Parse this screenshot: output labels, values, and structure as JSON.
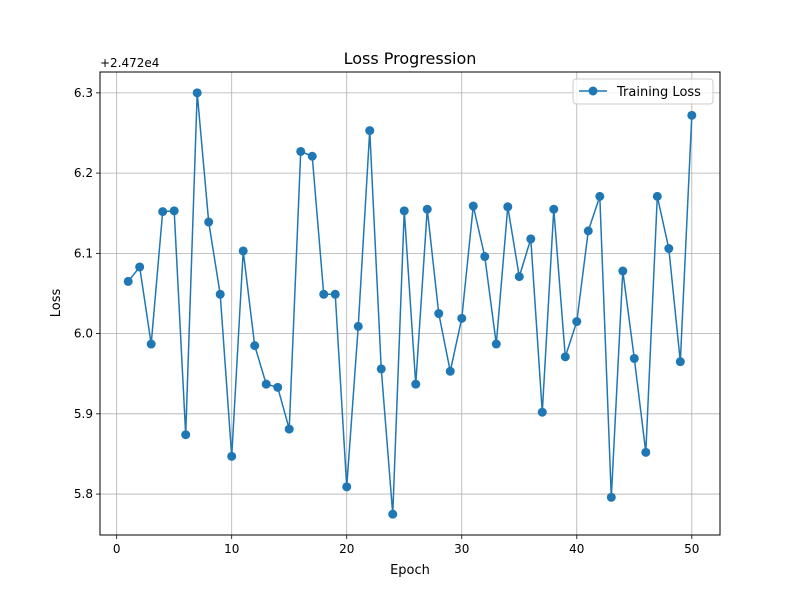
{
  "chart_data": {
    "type": "line",
    "title": "Loss Progression",
    "xlabel": "Epoch",
    "ylabel": "Loss",
    "y_offset_label": "+2.472e4",
    "y_offset": 24720,
    "xlim": [
      -1.45,
      52.45
    ],
    "ylim": [
      5.749,
      6.326
    ],
    "x_ticks": [
      0,
      10,
      20,
      30,
      40,
      50
    ],
    "y_ticks": [
      5.8,
      5.9,
      6.0,
      6.1,
      6.2,
      6.3
    ],
    "y_tick_labels": [
      "5.8",
      "5.9",
      "6.0",
      "6.1",
      "6.2",
      "6.3"
    ],
    "grid": true,
    "legend_position": "top-right",
    "series": [
      {
        "name": "Training Loss",
        "color": "#1f77b4",
        "marker": "circle",
        "x": [
          1,
          2,
          3,
          4,
          5,
          6,
          7,
          8,
          9,
          10,
          11,
          12,
          13,
          14,
          15,
          16,
          17,
          18,
          19,
          20,
          21,
          22,
          23,
          24,
          25,
          26,
          27,
          28,
          29,
          30,
          31,
          32,
          33,
          34,
          35,
          36,
          37,
          38,
          39,
          40,
          41,
          42,
          43,
          44,
          45,
          46,
          47,
          48,
          49,
          50
        ],
        "y": [
          6.065,
          6.083,
          5.987,
          6.152,
          6.153,
          5.874,
          6.3,
          6.139,
          6.049,
          5.847,
          6.103,
          5.985,
          5.937,
          5.933,
          5.881,
          6.227,
          6.221,
          6.049,
          6.049,
          5.809,
          6.009,
          6.253,
          5.956,
          5.775,
          6.153,
          5.937,
          6.155,
          6.025,
          5.953,
          6.019,
          6.159,
          6.096,
          5.987,
          6.158,
          6.071,
          6.118,
          5.902,
          6.155,
          5.971,
          6.015,
          6.128,
          6.171,
          5.796,
          6.078,
          5.969,
          5.852,
          6.171,
          6.106,
          5.965,
          6.272
        ]
      }
    ]
  }
}
